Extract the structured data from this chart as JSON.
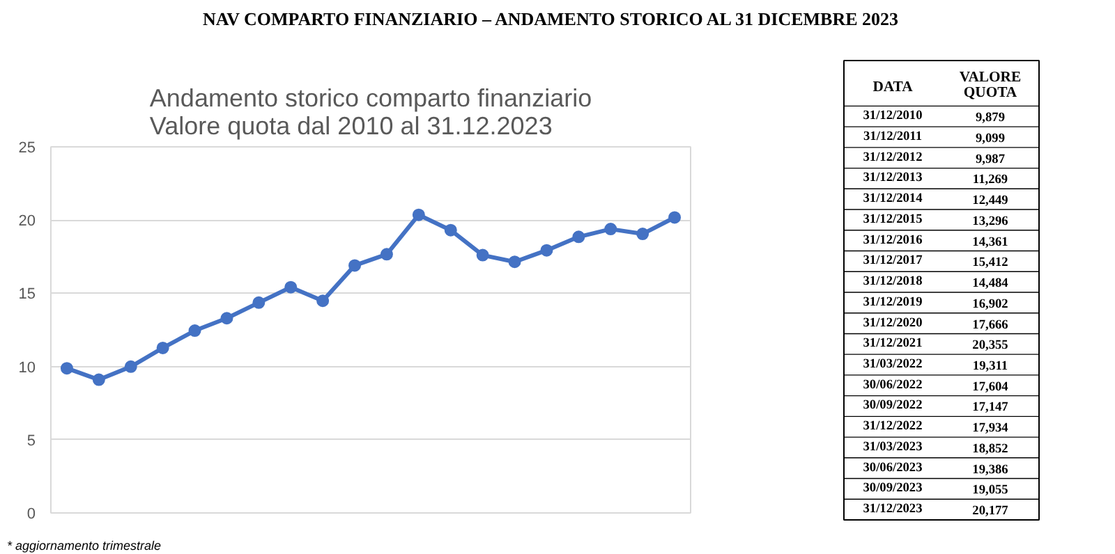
{
  "chart_data": [
    {
      "type": "line",
      "title": "NAV COMPARTO FINANZIARIO – ANDAMENTO STORICO AL 31 DICEMBRE 2023",
      "subtitle": "Andamento storico comparto finanziario\nValore quota dal 2010 al 31.12.2023",
      "categories": [
        null,
        null,
        null,
        null,
        null,
        null,
        null,
        null,
        null,
        null,
        null,
        null,
        null,
        null,
        null,
        null,
        null,
        null,
        null,
        null
      ],
      "series": [
        {
          "color": "#4472c4",
          "values": [
            9.879,
            9.099,
            9.987,
            11.269,
            12.449,
            13.296,
            14.361,
            15.412,
            14.484,
            16.902,
            17.666,
            20.355,
            19.311,
            17.604,
            17.147,
            17.934,
            18.852,
            19.386,
            19.055,
            20.177
          ]
        }
      ],
      "ylim": [
        0,
        25
      ],
      "yticks": [
        0,
        5,
        10,
        15,
        20,
        25
      ],
      "grid": "y",
      "tick_labels": "y",
      "marker": "circle",
      "line_style": "solid",
      "annotations": [
        "* aggiornamento trimestrale"
      ]
    },
    {
      "type": "other",
      "annotations": [
        "DATA",
        "VALORE QUOTA",
        "31/12/2010",
        "9,879",
        "31/12/2011",
        "9,099",
        "31/12/2012",
        "9,987",
        "31/12/2013",
        "11,269",
        "31/12/2014",
        "12,449",
        "31/12/2015",
        "13,296",
        "31/12/2016",
        "14,361",
        "31/12/2017",
        "15,412",
        "31/12/2018",
        "14,484",
        "31/12/2019",
        "16,902",
        "31/12/2020",
        "17,666",
        "31/12/2021",
        "20,355",
        "31/03/2022",
        "19,311",
        "30/06/2022",
        "17,604",
        "30/09/2022",
        "17,147",
        "31/12/2022",
        "17,934",
        "31/03/2023",
        "18,852",
        "30/06/2023",
        "19,386",
        "30/09/2023",
        "19,055",
        "31/12/2023",
        "20,177"
      ]
    }
  ]
}
